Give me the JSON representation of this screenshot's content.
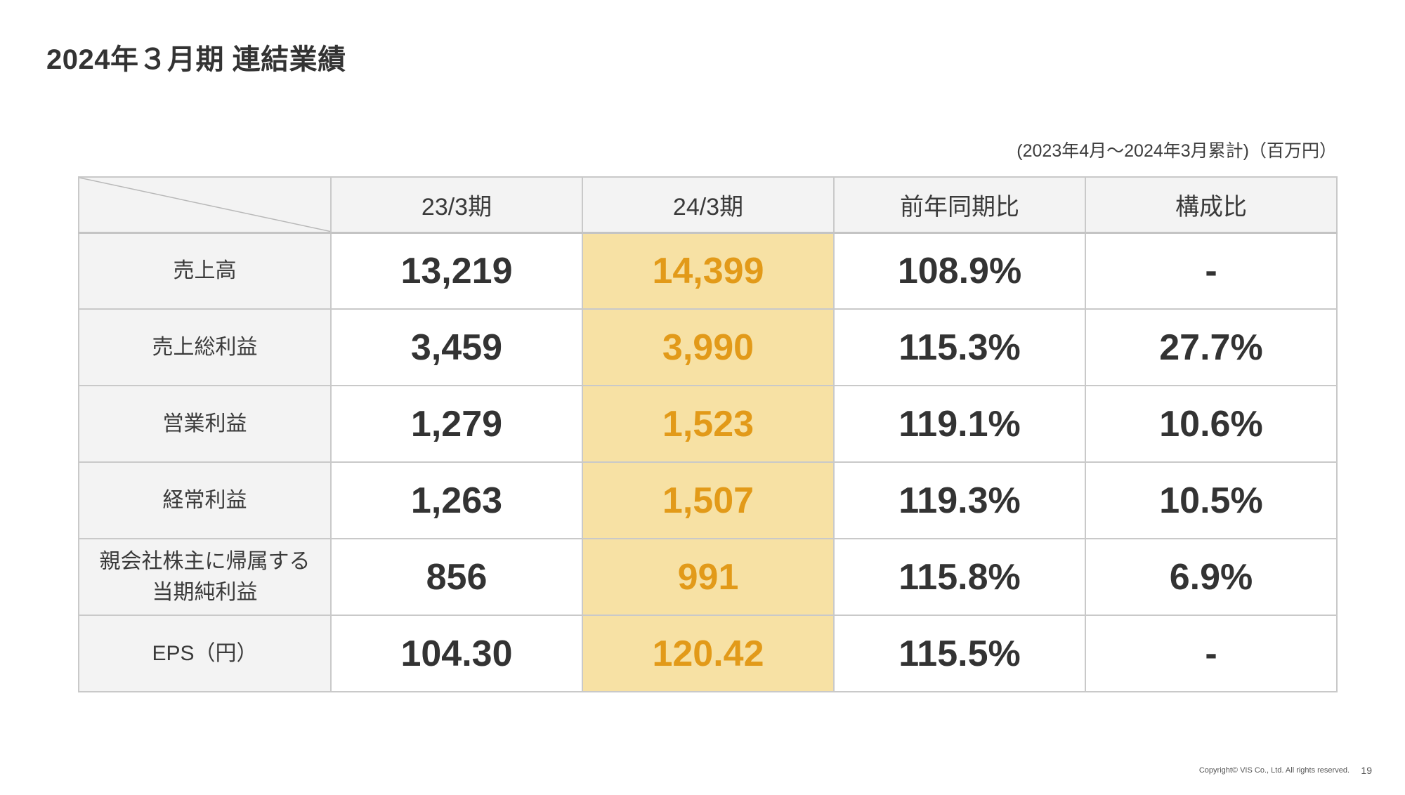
{
  "title": "2024年３月期 連結業績",
  "period_note": "(2023年4月〜2024年3月累計)（百万円）",
  "table": {
    "headers": [
      "23/3期",
      "24/3期",
      "前年同期比",
      "構成比"
    ],
    "rows": [
      {
        "label": "売上高",
        "values": [
          "13,219",
          "14,399",
          "108.9%",
          "-"
        ]
      },
      {
        "label": "売上総利益",
        "values": [
          "3,459",
          "3,990",
          "115.3%",
          "27.7%"
        ]
      },
      {
        "label": "営業利益",
        "values": [
          "1,279",
          "1,523",
          "119.1%",
          "10.6%"
        ]
      },
      {
        "label": "経常利益",
        "values": [
          "1,263",
          "1,507",
          "119.3%",
          "10.5%"
        ]
      },
      {
        "label": "親会社株主に帰属する当期純利益",
        "label_lines": [
          "親会社株主に帰属する",
          "当期純利益"
        ],
        "values": [
          "856",
          "991",
          "115.8%",
          "6.9%"
        ]
      },
      {
        "label": "EPS（円）",
        "values": [
          "104.30",
          "120.42",
          "115.5%",
          "-"
        ]
      }
    ]
  },
  "colors": {
    "highlight_fill": "#f7e1a4",
    "highlight_text": "#e29a19",
    "header_fill": "#f3f3f3",
    "border": "#c9c9c9"
  },
  "footer": {
    "copyright": "Copyright© VIS Co., Ltd. All rights reserved.",
    "page": "19"
  }
}
